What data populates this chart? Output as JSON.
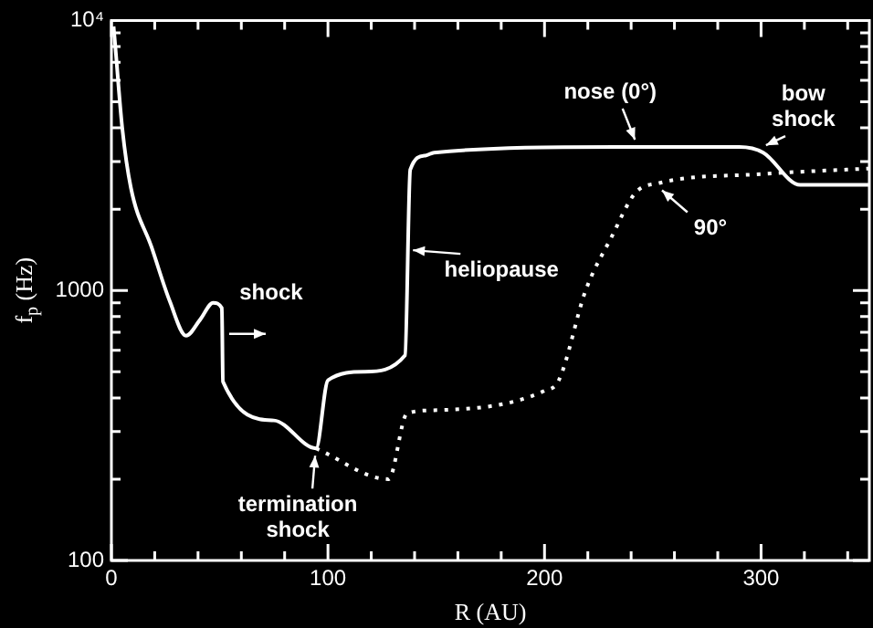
{
  "chart_data": {
    "type": "line",
    "xlabel": "R (AU)",
    "ylabel": "f$_{p}$ (Hz)",
    "log": "y",
    "grid": false,
    "legend": false,
    "marker": "none",
    "xlim": [
      0,
      350
    ],
    "xticks": [
      0,
      {
        "value": 20,
        "label": null
      },
      {
        "value": 40,
        "label": null
      },
      {
        "value": 60,
        "label": null
      },
      {
        "value": 80,
        "label": null
      },
      100,
      {
        "value": 120,
        "label": null
      },
      {
        "value": 140,
        "label": null
      },
      {
        "value": 160,
        "label": null
      },
      {
        "value": 180,
        "label": null
      },
      200,
      {
        "value": 220,
        "label": null
      },
      {
        "value": 240,
        "label": null
      },
      {
        "value": 260,
        "label": null
      },
      {
        "value": 280,
        "label": null
      },
      300,
      {
        "value": 320,
        "label": null
      },
      {
        "value": 340,
        "label": null
      }
    ],
    "ylim": [
      100,
      10000
    ],
    "yticks": [
      100,
      {
        "value": 200,
        "label": null
      },
      {
        "value": 300,
        "label": null
      },
      {
        "value": 400,
        "label": null
      },
      {
        "value": 500,
        "label": null
      },
      {
        "value": 600,
        "label": null
      },
      {
        "value": 700,
        "label": null
      },
      {
        "value": 800,
        "label": null
      },
      {
        "value": 900,
        "label": null
      },
      1000,
      {
        "value": 2000,
        "label": null
      },
      {
        "value": 3000,
        "label": null
      },
      {
        "value": 4000,
        "label": null
      },
      {
        "value": 5000,
        "label": null
      },
      {
        "value": 6000,
        "label": null
      },
      {
        "value": 7000,
        "label": null
      },
      {
        "value": 8000,
        "label": null
      },
      {
        "value": 9000,
        "label": null
      },
      {
        "value": 10000,
        "label": "10⁴"
      }
    ],
    "series": [
      {
        "color": "#ffffff",
        "line_style": "solid",
        "x": [
          1,
          1.7,
          5,
          9,
          18.5,
          27,
          34.5,
          41,
          47,
          51,
          51.5,
          75,
          94.5,
          100,
          117,
          135.6,
          138,
          145,
          149,
          233,
          290,
          301,
          318,
          350
        ],
        "values": [
          9500,
          8200,
          4000,
          2400,
          1450,
          910,
          680,
          780,
          900,
          860,
          460,
          330,
          260,
          465,
          500,
          575,
          2800,
          3160,
          3240,
          3400,
          3400,
          3240,
          2460,
          2460
        ]
      },
      {
        "color": "#ffffff",
        "line_style": "dotted",
        "x": [
          94.5,
          128,
          136.5,
          149,
          200,
          206.6,
          219,
          231,
          242,
          253,
          301,
          350
        ],
        "values": [
          260,
          200,
          350,
          360,
          425,
          465,
          1000,
          1580,
          2300,
          2500,
          2700,
          2830
        ]
      }
    ],
    "annotations": [
      {
        "text": "shock",
        "x": 51,
        "y": 900
      },
      {
        "text": "termination\nshock",
        "x": 94.5,
        "y": 260
      },
      {
        "text": "heliopause",
        "x": 138,
        "y": 1500
      },
      {
        "text": "nose (0°)",
        "x": 243,
        "y": 3400
      },
      {
        "text": "bow\nshock",
        "x": 301,
        "y": 3240
      },
      {
        "text": "90°",
        "x": 253,
        "y": 2500
      }
    ]
  }
}
